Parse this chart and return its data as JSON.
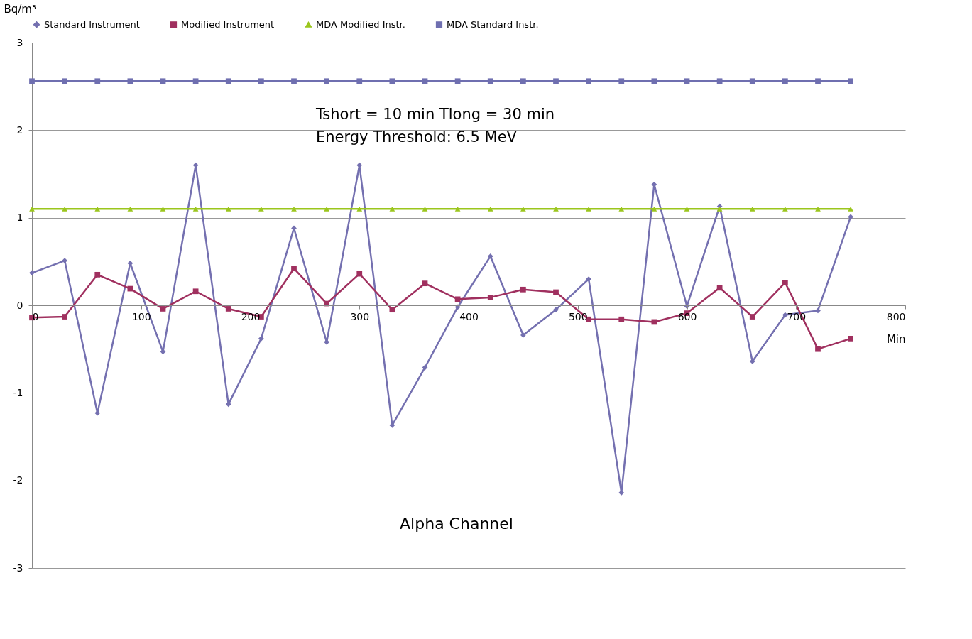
{
  "chart_data": {
    "type": "line",
    "ylabel": "Bq/m³",
    "xlabel": "Min",
    "x": [
      0,
      30,
      60,
      90,
      120,
      150,
      180,
      210,
      240,
      270,
      300,
      330,
      360,
      390,
      420,
      450,
      480,
      510,
      540,
      570,
      600,
      630,
      660,
      690,
      720,
      750
    ],
    "series": [
      {
        "name": "Standard Instrument",
        "color": "#7470b0",
        "marker": "diamond",
        "values": [
          0.37,
          0.51,
          -1.23,
          0.48,
          -0.53,
          1.6,
          -1.13,
          -0.38,
          0.88,
          -0.42,
          1.6,
          -1.37,
          -0.71,
          -0.02,
          0.56,
          -0.34,
          -0.05,
          0.3,
          -2.14,
          1.38,
          -0.01,
          1.13,
          -0.64,
          -0.11,
          -0.06,
          1.01
        ]
      },
      {
        "name": "Modified Instrument",
        "color": "#a0305f",
        "marker": "square",
        "values": [
          -0.14,
          -0.13,
          0.35,
          0.19,
          -0.04,
          0.16,
          -0.04,
          -0.13,
          0.42,
          0.02,
          0.36,
          -0.05,
          0.25,
          0.07,
          0.09,
          0.18,
          0.15,
          -0.16,
          -0.16,
          -0.19,
          -0.09,
          0.2,
          -0.13,
          0.26,
          -0.5,
          -0.38
        ]
      },
      {
        "name": "MDA Modified Instr.",
        "color": "#9bc61d",
        "marker": "triangle",
        "values": [
          1.1,
          1.1,
          1.1,
          1.1,
          1.1,
          1.1,
          1.1,
          1.1,
          1.1,
          1.1,
          1.1,
          1.1,
          1.1,
          1.1,
          1.1,
          1.1,
          1.1,
          1.1,
          1.1,
          1.1,
          1.1,
          1.1,
          1.1,
          1.1,
          1.1,
          1.1
        ]
      },
      {
        "name": "MDA Standard Instr.",
        "color": "#6f6fb0",
        "marker": "square",
        "values": [
          2.56,
          2.56,
          2.56,
          2.56,
          2.56,
          2.56,
          2.56,
          2.56,
          2.56,
          2.56,
          2.56,
          2.56,
          2.56,
          2.56,
          2.56,
          2.56,
          2.56,
          2.56,
          2.56,
          2.56,
          2.56,
          2.56,
          2.56,
          2.56,
          2.56,
          2.56
        ]
      }
    ],
    "xlim": [
      0,
      800
    ],
    "xticks": [
      0,
      100,
      200,
      300,
      400,
      500,
      600,
      700,
      800
    ],
    "ylim": [
      -3,
      3
    ],
    "yticks": [
      -3,
      -2,
      -1,
      0,
      1,
      2,
      3
    ],
    "grid": "y",
    "legend": "top",
    "line_style": "solid",
    "annotations": [
      "Tshort = 10 min      Tlong = 30 min",
      "Energy Threshold: 6.5 MeV",
      "Alpha Channel"
    ]
  }
}
